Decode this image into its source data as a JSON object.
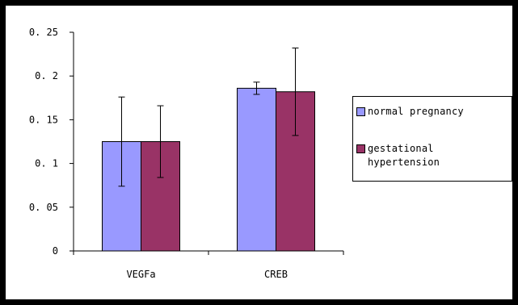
{
  "chart_data": {
    "type": "bar",
    "categories": [
      "VEGFa",
      "CREB"
    ],
    "series": [
      {
        "name": "normal pregnancy",
        "values": [
          0.125,
          0.186
        ],
        "errors": [
          0.051,
          0.007
        ],
        "color": "#9999ff"
      },
      {
        "name": "gestational hypertension",
        "values": [
          0.125,
          0.182
        ],
        "errors": [
          0.041,
          0.05
        ],
        "color": "#993366"
      }
    ],
    "ylim": [
      0,
      0.25
    ],
    "yticks": [
      0,
      0.05,
      0.1,
      0.15,
      0.2,
      0.25
    ],
    "ytick_labels": [
      "0",
      "0. 05",
      "0. 1",
      "0. 15",
      "0. 2",
      "0. 25"
    ],
    "error_bars": true,
    "grid": false,
    "legend_position": "right",
    "title": "",
    "xlabel": "",
    "ylabel": ""
  },
  "legend": {
    "items": [
      {
        "line1": "normal pregnancy",
        "line2": ""
      },
      {
        "line1": "gestational",
        "line2": "hypertension"
      }
    ]
  }
}
